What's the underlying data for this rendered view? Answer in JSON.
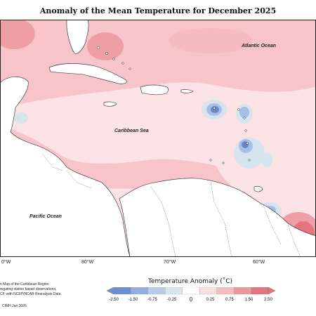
{
  "title": "Anomaly of the Mean Temperature for December 2025",
  "labels": {
    "atlantic": "Atlantic Ocean",
    "caribbean": "Caribbean Sea",
    "pacific": "Pacific Ocean"
  },
  "longitudes": [
    "0°W",
    "80°W",
    "70°W",
    "60°W"
  ],
  "info_lines": [
    "n Map of the Caribbean Region",
    "regating station based observations,",
    "CF, with NCEP/NCAR Reanalysis Data."
  ],
  "credit": "CIMH Jan 2026",
  "legend": {
    "title": "Temperature Anomaly (˚C)",
    "ticks": [
      "-2.50",
      "-1.50",
      "-0.75",
      "-0.25",
      "0",
      "0.25",
      "0.75",
      "1.50",
      "2.50"
    ],
    "colors": [
      "#6b8fd0",
      "#93aee4",
      "#b8cce9",
      "#d9e6ee",
      "#ffffff",
      "#f9dee0",
      "#f4bcc1",
      "#ed979e",
      "#e4757e"
    ]
  },
  "colors": {
    "land": "#ffffff",
    "coast": "#222222",
    "warm_light": "#fbe2e5",
    "warm_mid": "#f6c4c9",
    "warm_strong": "#ee9ea5",
    "cool_light": "#d6e4ee",
    "cool_mid": "#a7bfe4",
    "cool_strong": "#6a86c6"
  }
}
